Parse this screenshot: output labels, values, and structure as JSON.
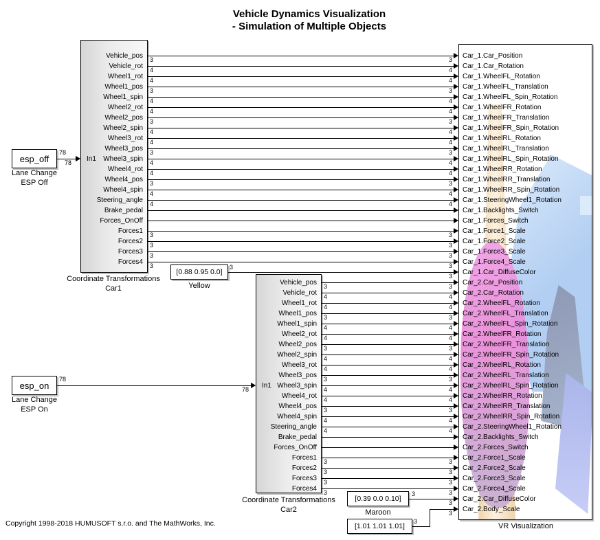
{
  "title": {
    "line1": "Vehicle Dynamics Visualization",
    "line2": "- Simulation of Multiple Objects"
  },
  "copyright": "Copyright 1998-2018 HUMUSOFT s.r.o. and The MathWorks, Inc.",
  "sources": [
    {
      "label": "esp_off",
      "caption1": "Lane Change",
      "caption2": "ESP Off",
      "signal_width": "78"
    },
    {
      "label": "esp_on",
      "caption1": "Lane Change",
      "caption2": "ESP On",
      "signal_width": "78"
    }
  ],
  "subsystems": [
    {
      "caption1": "Coordinate Transformations",
      "caption2": "Car1",
      "input_port": "In1",
      "output_ports": [
        {
          "name": "Vehicle_pos",
          "dim": "3"
        },
        {
          "name": "Vehicle_rot",
          "dim": "4"
        },
        {
          "name": "Wheel1_rot",
          "dim": "4"
        },
        {
          "name": "Wheel1_pos",
          "dim": "3"
        },
        {
          "name": "Wheel1_spin",
          "dim": "4"
        },
        {
          "name": "Wheel2_rot",
          "dim": "4"
        },
        {
          "name": "Wheel2_pos",
          "dim": "3"
        },
        {
          "name": "Wheel2_spin",
          "dim": "4"
        },
        {
          "name": "Wheel3_rot",
          "dim": "4"
        },
        {
          "name": "Wheel3_pos",
          "dim": "3"
        },
        {
          "name": "Wheel3_spin",
          "dim": "4"
        },
        {
          "name": "Wheel4_rot",
          "dim": "4"
        },
        {
          "name": "Wheel4_pos",
          "dim": "3"
        },
        {
          "name": "Wheel4_spin",
          "dim": "4"
        },
        {
          "name": "Steering_angle",
          "dim": "4"
        },
        {
          "name": "Brake_pedal",
          "dim": ""
        },
        {
          "name": "Forces_OnOff",
          "dim": ""
        },
        {
          "name": "Forces1",
          "dim": "3"
        },
        {
          "name": "Forces2",
          "dim": "3"
        },
        {
          "name": "Forces3",
          "dim": "3"
        },
        {
          "name": "Forces4",
          "dim": "3"
        }
      ]
    },
    {
      "caption1": "Coordinate Transformations",
      "caption2": "Car2",
      "input_port": "In1",
      "output_ports": [
        {
          "name": "Vehicle_pos",
          "dim": "3"
        },
        {
          "name": "Vehicle_rot",
          "dim": "4"
        },
        {
          "name": "Wheel1_rot",
          "dim": "4"
        },
        {
          "name": "Wheel1_pos",
          "dim": "3"
        },
        {
          "name": "Wheel1_spin",
          "dim": "4"
        },
        {
          "name": "Wheel2_rot",
          "dim": "4"
        },
        {
          "name": "Wheel2_pos",
          "dim": "3"
        },
        {
          "name": "Wheel2_spin",
          "dim": "4"
        },
        {
          "name": "Wheel3_rot",
          "dim": "4"
        },
        {
          "name": "Wheel3_pos",
          "dim": "3"
        },
        {
          "name": "Wheel3_spin",
          "dim": "4"
        },
        {
          "name": "Wheel4_rot",
          "dim": "4"
        },
        {
          "name": "Wheel4_pos",
          "dim": "3"
        },
        {
          "name": "Wheel4_spin",
          "dim": "4"
        },
        {
          "name": "Steering_angle",
          "dim": "4"
        },
        {
          "name": "Brake_pedal",
          "dim": ""
        },
        {
          "name": "Forces_OnOff",
          "dim": ""
        },
        {
          "name": "Forces1",
          "dim": "3"
        },
        {
          "name": "Forces2",
          "dim": "3"
        },
        {
          "name": "Forces3",
          "dim": "3"
        },
        {
          "name": "Forces4",
          "dim": "3"
        }
      ]
    }
  ],
  "constants": [
    {
      "value": "[0.88 0.95 0.0]",
      "caption": "Yellow",
      "dim": "3"
    },
    {
      "value": "[0.39 0.0 0.10]",
      "caption": "Maroon",
      "dim": "3"
    },
    {
      "value": "[1.01 1.01 1.01]",
      "caption": "",
      "dim": "3"
    }
  ],
  "vr_block": {
    "caption": "VR Visualization",
    "preview_colors": {
      "tan": "#f0d4ab",
      "tan_light": "#fdf2e0",
      "blue": "#b2cef2",
      "blue_light": "#dcebfb",
      "pink": "#ef9fe6",
      "pink_fade": "#c9abd4",
      "slate": "#8d99b5",
      "periwinkle": "#aab5ea"
    },
    "inputs": [
      {
        "label": "Car_1.Car_Position",
        "dim": "3"
      },
      {
        "label": "Car_1.Car_Rotation",
        "dim": "4"
      },
      {
        "label": "Car_1.WheelFL_Rotation",
        "dim": "4"
      },
      {
        "label": "Car_1.WheelFL_Translation",
        "dim": "3"
      },
      {
        "label": "Car_1.WheelFL_Spin_Rotation",
        "dim": "4"
      },
      {
        "label": "Car_1.WheelFR_Rotation",
        "dim": "4"
      },
      {
        "label": "Car_1.WheelFR_Translation",
        "dim": "3"
      },
      {
        "label": "Car_1.WheelFR_Spin_Rotation",
        "dim": "4"
      },
      {
        "label": "Car_1.WheelRL_Rotation",
        "dim": "4"
      },
      {
        "label": "Car_1.WheelRL_Translation",
        "dim": "3"
      },
      {
        "label": "Car_1.WheelRL_Spin_Rotation",
        "dim": "4"
      },
      {
        "label": "Car_1.WheelRR_Rotation",
        "dim": "4"
      },
      {
        "label": "Car_1.WheelRR_Translation",
        "dim": "3"
      },
      {
        "label": "Car_1.WheelRR_Spin_Rotation",
        "dim": "4"
      },
      {
        "label": "Car_1.SteeringWheel1_Rotation",
        "dim": "4"
      },
      {
        "label": "Car_1.Backlights_Switch",
        "dim": ""
      },
      {
        "label": "Car_1.Forces_Switch",
        "dim": ""
      },
      {
        "label": "Car_1.Force1_Scale",
        "dim": "3"
      },
      {
        "label": "Car_1.Force2_Scale",
        "dim": "3"
      },
      {
        "label": "Car_1.Force3_Scale",
        "dim": "3"
      },
      {
        "label": "Car_1.Force4_Scale",
        "dim": "3"
      },
      {
        "label": "Car_1.Car_DiffuseColor",
        "dim": "3"
      },
      {
        "label": "Car_2.Car_Position",
        "dim": "3"
      },
      {
        "label": "Car_2.Car_Rotation",
        "dim": "4"
      },
      {
        "label": "Car_2.WheelFL_Rotation",
        "dim": "4"
      },
      {
        "label": "Car_2.WheelFL_Translation",
        "dim": "3"
      },
      {
        "label": "Car_2.WheelFL_Spin_Rotation",
        "dim": "4"
      },
      {
        "label": "Car_2.WheelFR_Rotation",
        "dim": "4"
      },
      {
        "label": "Car_2.WheelFR_Translation",
        "dim": "3"
      },
      {
        "label": "Car_2.WheelFR_Spin_Rotation",
        "dim": "4"
      },
      {
        "label": "Car_2.WheelRL_Rotation",
        "dim": "4"
      },
      {
        "label": "Car_2.WheelRL_Translation",
        "dim": "3"
      },
      {
        "label": "Car_2.WheelRL_Spin_Rotation",
        "dim": "4"
      },
      {
        "label": "Car_2.WheelRR_Rotation",
        "dim": "4"
      },
      {
        "label": "Car_2.WheelRR_Translation",
        "dim": "3"
      },
      {
        "label": "Car_2.WheelRR_Spin_Rotation",
        "dim": "4"
      },
      {
        "label": "Car_2.SteeringWheel1_Rotation",
        "dim": "4"
      },
      {
        "label": "Car_2.Backlights_Switch",
        "dim": ""
      },
      {
        "label": "Car_2.Forces_Switch",
        "dim": ""
      },
      {
        "label": "Car_2.Force1_Scale",
        "dim": "3"
      },
      {
        "label": "Car_2.Force2_Scale",
        "dim": "3"
      },
      {
        "label": "Car_2.Force3_Scale",
        "dim": "3"
      },
      {
        "label": "Car_2.Force4_Scale",
        "dim": "3"
      },
      {
        "label": "Car_2.Car_DiffuseColor",
        "dim": "3"
      },
      {
        "label": "Car_2.Body_Scale",
        "dim": "3"
      }
    ]
  }
}
